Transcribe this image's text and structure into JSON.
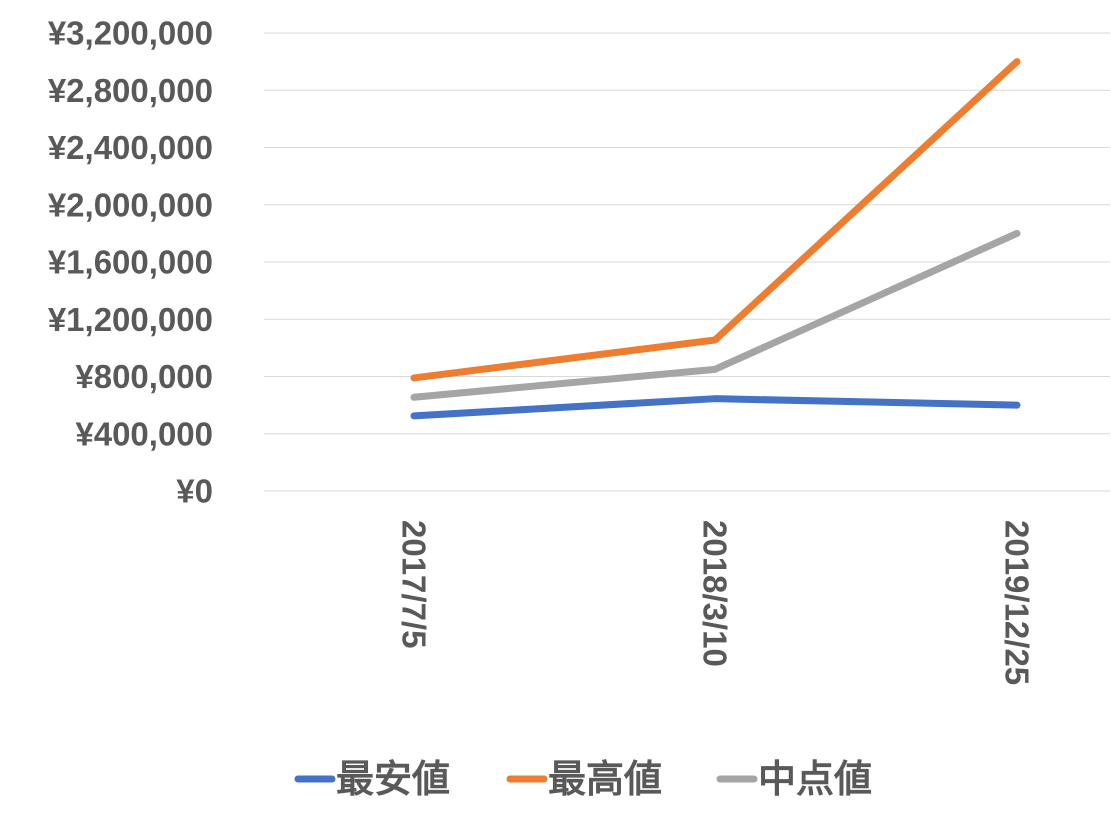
{
  "chart_data": {
    "type": "line",
    "categories": [
      "2017/7/5",
      "2018/3/10",
      "2019/12/25"
    ],
    "series": [
      {
        "name": "最安値",
        "color": "#4472c4",
        "values": [
          525000,
          645000,
          600000
        ]
      },
      {
        "name": "最高値",
        "color": "#ed7d31",
        "values": [
          790000,
          1055000,
          3000000
        ]
      },
      {
        "name": "中点値",
        "color": "#a5a5a5",
        "values": [
          655000,
          850000,
          1800000
        ]
      }
    ],
    "ylim": [
      0,
      3200000
    ],
    "y_ticks": [
      0,
      400000,
      800000,
      1200000,
      1600000,
      2000000,
      2400000,
      2800000,
      3200000
    ],
    "y_tick_labels": [
      "¥0",
      "¥400,000",
      "¥800,000",
      "¥1,200,000",
      "¥1,600,000",
      "¥2,000,000",
      "¥2,400,000",
      "¥2,800,000",
      "¥3,200,000"
    ],
    "x_tick_rotation": "vertical",
    "grid": true,
    "legend_position": "bottom"
  }
}
